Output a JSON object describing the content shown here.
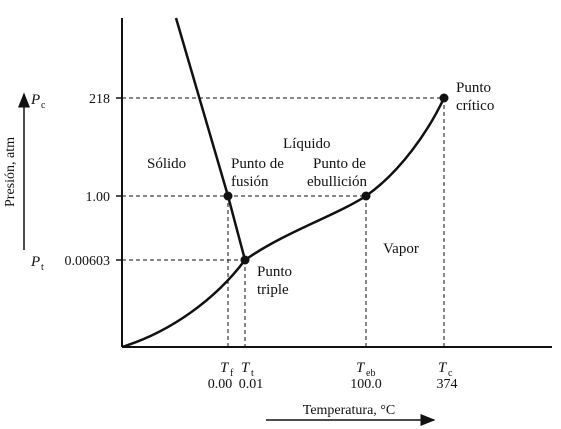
{
  "axes": {
    "ylabel": "Presión, atm",
    "xlabel": "Temperatura, °C"
  },
  "y_ticks": {
    "p218": "218",
    "p1": "1.00",
    "p00603": "0.00603"
  },
  "y_symbols": {
    "pc_main": "P",
    "pc_sub": "c",
    "pt_main": "P",
    "pt_sub": "t"
  },
  "x_symbols": {
    "tf_main": "T",
    "tf_sub": "f",
    "tt_main": "T",
    "tt_sub": "t",
    "teb_main": "T",
    "teb_sub": "eb",
    "tc_main": "T",
    "tc_sub": "c"
  },
  "x_values": {
    "tf": "0.00",
    "tt": "0.01",
    "teb": "100.0",
    "tc": "374"
  },
  "regions": {
    "solid": "Sólido",
    "liquid": "Líquido",
    "vapor": "Vapor"
  },
  "points": {
    "fusion_1": "Punto de",
    "fusion_2": "fusión",
    "boiling_1": "Punto de",
    "boiling_2": "ebullición",
    "critical_1": "Punto",
    "critical_2": "crítico",
    "triple_1": "Punto",
    "triple_2": "triple"
  }
}
